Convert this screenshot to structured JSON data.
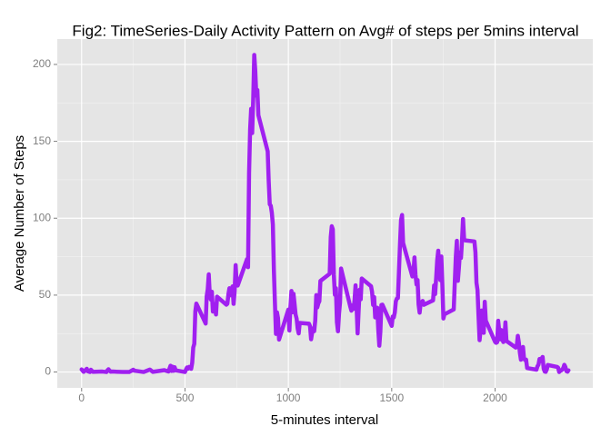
{
  "chart_data": {
    "type": "line",
    "title": "Fig2: TimeSeries-Daily Activity Pattern on Avg# of steps per 5mins interval",
    "x_label": "5-minutes interval",
    "y_label": "Average Number of Steps",
    "color": "#a020f0",
    "grid": true,
    "xlim": [
      -117.75,
      2472.75
    ],
    "xticks": [
      0,
      500,
      1000,
      1500,
      2000
    ],
    "ylim": [
      -10.3,
      216.5
    ],
    "yticks": [
      0,
      50,
      100,
      150,
      200
    ],
    "x": [
      0,
      10,
      25,
      30,
      40,
      45,
      55,
      100,
      120,
      125,
      130,
      140,
      150,
      200,
      230,
      250,
      255,
      300,
      330,
      345,
      400,
      420,
      430,
      435,
      440,
      445,
      450,
      455,
      500,
      505,
      510,
      515,
      520,
      525,
      530,
      535,
      540,
      545,
      550,
      555,
      600,
      605,
      610,
      615,
      620,
      625,
      630,
      635,
      640,
      645,
      650,
      655,
      700,
      705,
      710,
      715,
      720,
      725,
      730,
      735,
      740,
      745,
      750,
      755,
      800,
      805,
      810,
      815,
      820,
      825,
      830,
      835,
      840,
      845,
      850,
      855,
      900,
      905,
      910,
      915,
      920,
      925,
      930,
      935,
      940,
      945,
      950,
      955,
      1000,
      1005,
      1010,
      1015,
      1020,
      1025,
      1030,
      1035,
      1040,
      1045,
      1050,
      1055,
      1100,
      1105,
      1110,
      1115,
      1120,
      1125,
      1130,
      1135,
      1140,
      1145,
      1150,
      1155,
      1200,
      1205,
      1210,
      1215,
      1220,
      1225,
      1230,
      1235,
      1240,
      1245,
      1250,
      1255,
      1300,
      1305,
      1310,
      1315,
      1320,
      1325,
      1330,
      1335,
      1340,
      1345,
      1350,
      1355,
      1400,
      1405,
      1410,
      1415,
      1420,
      1425,
      1430,
      1435,
      1440,
      1445,
      1450,
      1455,
      1500,
      1505,
      1510,
      1515,
      1520,
      1525,
      1530,
      1535,
      1540,
      1545,
      1550,
      1555,
      1600,
      1605,
      1610,
      1615,
      1620,
      1625,
      1630,
      1635,
      1640,
      1645,
      1650,
      1655,
      1700,
      1705,
      1710,
      1715,
      1720,
      1725,
      1730,
      1735,
      1740,
      1745,
      1750,
      1755,
      1800,
      1805,
      1810,
      1815,
      1820,
      1825,
      1830,
      1835,
      1840,
      1845,
      1850,
      1855,
      1900,
      1905,
      1910,
      1915,
      1920,
      1925,
      1930,
      1935,
      1940,
      1945,
      1950,
      1955,
      2000,
      2005,
      2010,
      2015,
      2020,
      2025,
      2030,
      2035,
      2040,
      2045,
      2050,
      2055,
      2100,
      2105,
      2110,
      2115,
      2120,
      2125,
      2130,
      2135,
      2140,
      2145,
      2150,
      2155,
      2200,
      2205,
      2210,
      2215,
      2220,
      2225,
      2230,
      2235,
      2240,
      2245,
      2250,
      2255,
      2300,
      2305,
      2310,
      2315,
      2320,
      2325,
      2330,
      2335,
      2340,
      2345,
      2350,
      2355
    ],
    "values": [
      1.7,
      0.1,
      2.1,
      0.5,
      0,
      1.5,
      0.1,
      0.3,
      0,
      1.1,
      1.8,
      0.2,
      0.3,
      0,
      0,
      1.5,
      0.9,
      0,
      1.6,
      0.1,
      1.2,
      0.3,
      4.1,
      0.7,
      3.5,
      0.8,
      3.1,
      1.1,
      0,
      1.6,
      3,
      2.2,
      3.3,
      3,
      2.1,
      6.1,
      16,
      18.3,
      39.5,
      44.5,
      31.5,
      49.3,
      53.8,
      63.5,
      50,
      47.1,
      52.2,
      39.3,
      44,
      44.2,
      37.4,
      49,
      43.8,
      44.4,
      50.5,
      54.5,
      49.9,
      51,
      55.7,
      44.3,
      52.3,
      69.5,
      57.8,
      56.2,
      73.4,
      68.2,
      129.4,
      157.5,
      171.2,
      155.4,
      177.3,
      206.2,
      195.9,
      179.6,
      183.4,
      167,
      143.5,
      124,
      109.1,
      108.1,
      103.7,
      96,
      66.2,
      45.2,
      24.8,
      38.8,
      35,
      21.1,
      40.6,
      27,
      42.4,
      52.7,
      38.9,
      50.8,
      44.3,
      37.4,
      34.7,
      28.3,
      25.1,
      31.9,
      31.4,
      29.7,
      21.3,
      25.5,
      28.4,
      26.5,
      33.4,
      50,
      42,
      44.6,
      46,
      59.2,
      63.9,
      87.7,
      94.8,
      92.8,
      63.4,
      50.2,
      54.5,
      32.4,
      26.5,
      37.7,
      45.1,
      67.3,
      42.3,
      39.9,
      43.3,
      41,
      46.2,
      56.4,
      42.8,
      25.1,
      40,
      53.5,
      47.3,
      60.8,
      55.8,
      52,
      43.6,
      48.7,
      35.5,
      37.5,
      41.8,
      27.5,
      17.1,
      26.1,
      43.6,
      43.8,
      30,
      36.1,
      35.5,
      38.8,
      46,
      47.8,
      48.1,
      65.3,
      82.9,
      98.7,
      102.1,
      84,
      62.1,
      64.1,
      74.5,
      63.2,
      56.9,
      59.8,
      43.9,
      38.6,
      44.7,
      45.5,
      46.2,
      43.7,
      46.6,
      56.3,
      50.7,
      61.2,
      72.7,
      78.9,
      68.9,
      59.7,
      75.1,
      56.5,
      34.8,
      37.5,
      40.7,
      58,
      74.7,
      85.3,
      59.3,
      67.8,
      77.7,
      74.2,
      85.3,
      99.5,
      86.6,
      85.6,
      84.9,
      77.8,
      58,
      53.4,
      36.3,
      20.7,
      27.4,
      40,
      30.2,
      25.5,
      45.7,
      33.5,
      19.6,
      19,
      19.3,
      33.3,
      26.8,
      21.2,
      27.3,
      21.3,
      19.5,
      21.3,
      32.3,
      20.2,
      15.9,
      17.2,
      23.5,
      19.2,
      12.5,
      8,
      14.7,
      16.3,
      8.7,
      7.8,
      8.1,
      2.6,
      1.5,
      3.7,
      4.8,
      8.5,
      7.1,
      8.7,
      9.8,
      2.2,
      0.3,
      0.1,
      1.6,
      4.6,
      3.3,
      2.8,
      0,
      0.8,
      1,
      1.6,
      2.6,
      4.7,
      3.3,
      0.6,
      0.2,
      1.1
    ]
  }
}
